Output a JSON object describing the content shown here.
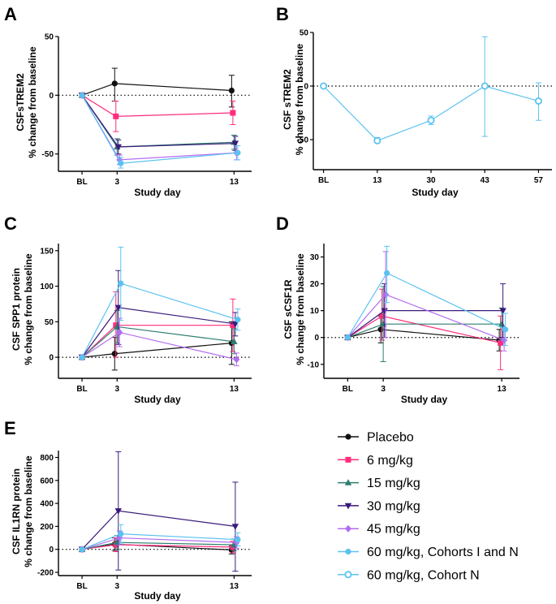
{
  "figure": {
    "legend": [
      {
        "label": "Placebo",
        "color": "#111111",
        "marker": "circle"
      },
      {
        "label": "6 mg/kg",
        "color": "#ff2c7c",
        "marker": "square"
      },
      {
        "label": "15 mg/kg",
        "color": "#2e7d6f",
        "marker": "triangle-up"
      },
      {
        "label": "30 mg/kg",
        "color": "#3b1a7a",
        "marker": "triangle-down"
      },
      {
        "label": "45 mg/kg",
        "color": "#b36cf0",
        "marker": "diamond"
      },
      {
        "label": "60 mg/kg, Cohorts I and N",
        "color": "#5bc2f0",
        "marker": "circle"
      },
      {
        "label": "60 mg/kg, Cohort N",
        "color": "#5bc2f0",
        "marker": "open-circle"
      }
    ]
  },
  "chart_data": [
    {
      "panel": "A",
      "type": "line",
      "ylabel_line1": "CSFsTREM2",
      "ylabel_line2": "% change from baseline",
      "xlabel": "Study day",
      "x_ticks": [
        {
          "pos": 0,
          "label": "BL"
        },
        {
          "pos": 3,
          "label": "3"
        },
        {
          "pos": 13,
          "label": "13"
        }
      ],
      "xlim": [
        -1.6,
        14.5
      ],
      "ylim": [
        -62,
        50
      ],
      "yticks": [
        -50,
        0,
        50
      ],
      "series": [
        {
          "name": "Placebo",
          "points": [
            {
              "x": 0,
              "y": 0,
              "lo": 0,
              "hi": 0
            },
            {
              "x": 3,
              "y": 10,
              "lo": -5,
              "hi": 23
            },
            {
              "x": 13,
              "y": 4,
              "lo": -10,
              "hi": 17
            }
          ]
        },
        {
          "name": "6 mg/kg",
          "points": [
            {
              "x": 0,
              "y": 0,
              "lo": 0,
              "hi": 0
            },
            {
              "x": 3,
              "y": -18,
              "lo": -31,
              "hi": -5
            },
            {
              "x": 13,
              "y": -15,
              "lo": -25,
              "hi": -5
            }
          ]
        },
        {
          "name": "15 mg/kg",
          "points": [
            {
              "x": 0,
              "y": 0,
              "lo": 0,
              "hi": 0
            },
            {
              "x": 3,
              "y": -44,
              "lo": -51,
              "hi": -37
            },
            {
              "x": 13,
              "y": -40,
              "lo": -46,
              "hi": -34
            }
          ]
        },
        {
          "name": "30 mg/kg",
          "points": [
            {
              "x": 0,
              "y": 0,
              "lo": 0,
              "hi": 0
            },
            {
              "x": 3,
              "y": -44,
              "lo": -50,
              "hi": -38
            },
            {
              "x": 13,
              "y": -41,
              "lo": -47,
              "hi": -35
            }
          ]
        },
        {
          "name": "45 mg/kg",
          "points": [
            {
              "x": 0,
              "y": 0,
              "lo": 0,
              "hi": 0
            },
            {
              "x": 3,
              "y": -55,
              "lo": -59,
              "hi": -51
            },
            {
              "x": 13,
              "y": -49,
              "lo": -55,
              "hi": -43
            }
          ]
        },
        {
          "name": "60 mg/kg, Cohorts I and N",
          "points": [
            {
              "x": 0,
              "y": 0,
              "lo": 0,
              "hi": 0
            },
            {
              "x": 3,
              "y": -58,
              "lo": -62,
              "hi": -53
            },
            {
              "x": 13,
              "y": -49,
              "lo": -55,
              "hi": -43
            }
          ]
        }
      ]
    },
    {
      "panel": "B",
      "type": "line",
      "ylabel_line1": "CSF sTREM2",
      "ylabel_line2": "% change from baseline",
      "xlabel": "Study day",
      "x_ticks": [
        {
          "pos": 0,
          "label": "BL"
        },
        {
          "pos": 1,
          "label": "13"
        },
        {
          "pos": 2,
          "label": "30"
        },
        {
          "pos": 3,
          "label": "43"
        },
        {
          "pos": 4,
          "label": "57"
        }
      ],
      "xlim": [
        -0.1,
        4.25
      ],
      "ylim": [
        -75,
        50
      ],
      "yticks": [
        -50,
        0,
        50
      ],
      "series": [
        {
          "name": "60 mg/kg, Cohort N",
          "points": [
            {
              "x": 0,
              "y": 0,
              "lo": 0,
              "hi": 0
            },
            {
              "x": 1,
              "y": -51,
              "lo": -53,
              "hi": -48
            },
            {
              "x": 2,
              "y": -32,
              "lo": -36,
              "hi": -28
            },
            {
              "x": 3,
              "y": 0,
              "lo": -47,
              "hi": 46
            },
            {
              "x": 4,
              "y": -14,
              "lo": -32,
              "hi": 3
            }
          ]
        }
      ]
    },
    {
      "panel": "C",
      "type": "line",
      "ylabel_line1": "CSF SPP1 protein",
      "ylabel_line2": "% change from baseline",
      "xlabel": "Study day",
      "x_ticks": [
        {
          "pos": 0,
          "label": "BL"
        },
        {
          "pos": 3,
          "label": "3"
        },
        {
          "pos": 13,
          "label": "13"
        }
      ],
      "xlim": [
        -1.6,
        14.5
      ],
      "ylim": [
        -25,
        160
      ],
      "yticks": [
        0,
        50,
        100,
        150
      ],
      "series": [
        {
          "name": "Placebo",
          "points": [
            {
              "x": 0,
              "y": 0,
              "lo": 0,
              "hi": 0
            },
            {
              "x": 3,
              "y": 5,
              "lo": -18,
              "hi": 28
            },
            {
              "x": 13,
              "y": 20,
              "lo": -10,
              "hi": 50
            }
          ]
        },
        {
          "name": "6 mg/kg",
          "points": [
            {
              "x": 0,
              "y": 0,
              "lo": 0,
              "hi": 0
            },
            {
              "x": 3,
              "y": 45,
              "lo": 0,
              "hi": 92
            },
            {
              "x": 13,
              "y": 45,
              "lo": 8,
              "hi": 82
            }
          ]
        },
        {
          "name": "15 mg/kg",
          "points": [
            {
              "x": 0,
              "y": 0,
              "lo": 0,
              "hi": 0
            },
            {
              "x": 3,
              "y": 43,
              "lo": 20,
              "hi": 66
            },
            {
              "x": 13,
              "y": 22,
              "lo": 5,
              "hi": 40
            }
          ]
        },
        {
          "name": "30 mg/kg",
          "points": [
            {
              "x": 0,
              "y": 0,
              "lo": 0,
              "hi": 0
            },
            {
              "x": 3,
              "y": 70,
              "lo": 18,
              "hi": 122
            },
            {
              "x": 13,
              "y": 47,
              "lo": 30,
              "hi": 63
            }
          ]
        },
        {
          "name": "45 mg/kg",
          "points": [
            {
              "x": 0,
              "y": 0,
              "lo": 0,
              "hi": 0
            },
            {
              "x": 3,
              "y": 35,
              "lo": 15,
              "hi": 55
            },
            {
              "x": 13,
              "y": -3,
              "lo": -12,
              "hi": 6
            }
          ]
        },
        {
          "name": "60 mg/kg, Cohorts I and N",
          "points": [
            {
              "x": 0,
              "y": 0,
              "lo": 0,
              "hi": 0
            },
            {
              "x": 3,
              "y": 104,
              "lo": 52,
              "hi": 155
            },
            {
              "x": 13,
              "y": 53,
              "lo": 38,
              "hi": 68
            }
          ]
        }
      ]
    },
    {
      "panel": "D",
      "type": "line",
      "ylabel_line1": "CSF sCSF1R",
      "ylabel_line2": "% change from baseline",
      "xlabel": "Study day",
      "x_ticks": [
        {
          "pos": 0,
          "label": "BL"
        },
        {
          "pos": 3,
          "label": "3"
        },
        {
          "pos": 13,
          "label": "13"
        }
      ],
      "xlim": [
        -1.6,
        14.5
      ],
      "ylim": [
        -14,
        35
      ],
      "yticks": [
        -10,
        0,
        10,
        20,
        30
      ],
      "series": [
        {
          "name": "Placebo",
          "points": [
            {
              "x": 0,
              "y": 0,
              "lo": 0,
              "hi": 0
            },
            {
              "x": 3,
              "y": 3,
              "lo": -2,
              "hi": 8
            },
            {
              "x": 13,
              "y": -1,
              "lo": -5,
              "hi": 3
            }
          ]
        },
        {
          "name": "6 mg/kg",
          "points": [
            {
              "x": 0,
              "y": 0,
              "lo": 0,
              "hi": 0
            },
            {
              "x": 3,
              "y": 8,
              "lo": -1,
              "hi": 18
            },
            {
              "x": 13,
              "y": -2,
              "lo": -12,
              "hi": 8
            }
          ]
        },
        {
          "name": "15 mg/kg",
          "points": [
            {
              "x": 0,
              "y": 0,
              "lo": 0,
              "hi": 0
            },
            {
              "x": 3,
              "y": 5,
              "lo": -9,
              "hi": 19
            },
            {
              "x": 13,
              "y": 5,
              "lo": -1,
              "hi": 11
            }
          ]
        },
        {
          "name": "30 mg/kg",
          "points": [
            {
              "x": 0,
              "y": 0,
              "lo": 0,
              "hi": 0
            },
            {
              "x": 3,
              "y": 10,
              "lo": 0,
              "hi": 20
            },
            {
              "x": 13,
              "y": 10,
              "lo": 0,
              "hi": 20
            }
          ]
        },
        {
          "name": "45 mg/kg",
          "points": [
            {
              "x": 0,
              "y": 0,
              "lo": 0,
              "hi": 0
            },
            {
              "x": 3,
              "y": 16,
              "lo": 0,
              "hi": 32
            },
            {
              "x": 13,
              "y": -1,
              "lo": -5,
              "hi": 3
            }
          ]
        },
        {
          "name": "60 mg/kg, Cohorts I and N",
          "points": [
            {
              "x": 0,
              "y": 0,
              "lo": 0,
              "hi": 0
            },
            {
              "x": 3,
              "y": 24,
              "lo": 13,
              "hi": 34
            },
            {
              "x": 13,
              "y": 3,
              "lo": -3,
              "hi": 9
            }
          ]
        }
      ]
    },
    {
      "panel": "E",
      "type": "line",
      "ylabel_line1": "CSF IL1RN protein",
      "ylabel_line2": "% change from baseline",
      "xlabel": "Study day",
      "x_ticks": [
        {
          "pos": 0,
          "label": "BL"
        },
        {
          "pos": 3,
          "label": "3"
        },
        {
          "pos": 13,
          "label": "13"
        }
      ],
      "xlim": [
        -1.6,
        14.5
      ],
      "ylim": [
        -200,
        860
      ],
      "yticks": [
        -200,
        0,
        200,
        400,
        600,
        800
      ],
      "series": [
        {
          "name": "Placebo",
          "points": [
            {
              "x": 0,
              "y": 0,
              "lo": 0,
              "hi": 0
            },
            {
              "x": 3,
              "y": 45,
              "lo": -10,
              "hi": 100
            },
            {
              "x": 13,
              "y": -5,
              "lo": -40,
              "hi": 30
            }
          ]
        },
        {
          "name": "6 mg/kg",
          "points": [
            {
              "x": 0,
              "y": 0,
              "lo": 0,
              "hi": 0
            },
            {
              "x": 3,
              "y": 40,
              "lo": -20,
              "hi": 100
            },
            {
              "x": 13,
              "y": 20,
              "lo": -30,
              "hi": 70
            }
          ]
        },
        {
          "name": "15 mg/kg",
          "points": [
            {
              "x": 0,
              "y": 0,
              "lo": 0,
              "hi": 0
            },
            {
              "x": 3,
              "y": 60,
              "lo": 0,
              "hi": 120
            },
            {
              "x": 13,
              "y": 40,
              "lo": -10,
              "hi": 90
            }
          ]
        },
        {
          "name": "30 mg/kg",
          "points": [
            {
              "x": 0,
              "y": 0,
              "lo": 0,
              "hi": 0
            },
            {
              "x": 3,
              "y": 335,
              "lo": -180,
              "hi": 850
            },
            {
              "x": 13,
              "y": 200,
              "lo": -190,
              "hi": 585
            }
          ]
        },
        {
          "name": "45 mg/kg",
          "points": [
            {
              "x": 0,
              "y": 0,
              "lo": 0,
              "hi": 0
            },
            {
              "x": 3,
              "y": 100,
              "lo": 40,
              "hi": 160
            },
            {
              "x": 13,
              "y": 60,
              "lo": 10,
              "hi": 110
            }
          ]
        },
        {
          "name": "60 mg/kg, Cohorts I and N",
          "points": [
            {
              "x": 0,
              "y": 0,
              "lo": 0,
              "hi": 0
            },
            {
              "x": 3,
              "y": 135,
              "lo": 55,
              "hi": 215
            },
            {
              "x": 13,
              "y": 85,
              "lo": 30,
              "hi": 145
            }
          ]
        }
      ]
    }
  ]
}
